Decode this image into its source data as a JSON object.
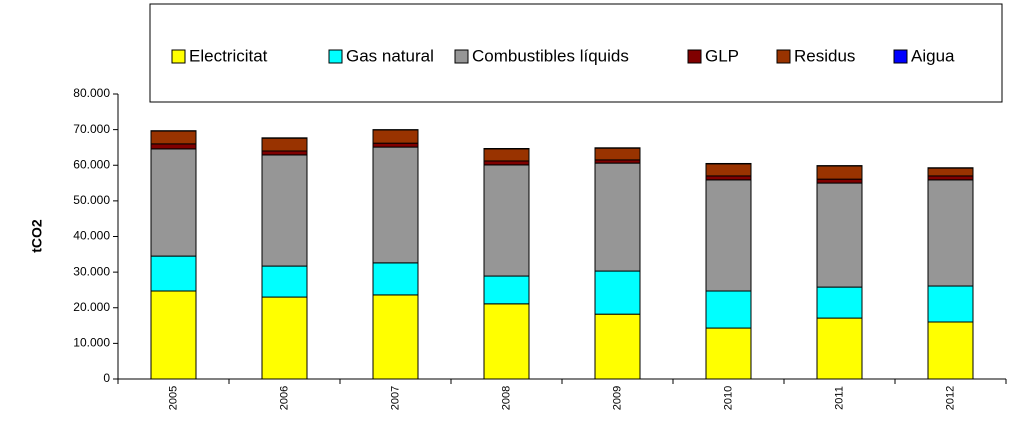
{
  "chart_data": {
    "type": "stacked_bar",
    "y_label": "tCO2",
    "categories": [
      "2005",
      "2006",
      "2007",
      "2008",
      "2009",
      "2010",
      "2011",
      "2012"
    ],
    "series": [
      {
        "name": "Electricitat",
        "color": "#ffff00",
        "values": [
          24700,
          23000,
          23600,
          21100,
          18200,
          14300,
          17100,
          16000
        ]
      },
      {
        "name": "Gas natural",
        "color": "#00ffff",
        "values": [
          9800,
          8700,
          9000,
          7800,
          12100,
          10400,
          8700,
          10100
        ]
      },
      {
        "name": "Combustibles líquids",
        "color": "#969696",
        "values": [
          30100,
          31200,
          32500,
          31200,
          30300,
          31200,
          29200,
          29800
        ]
      },
      {
        "name": "GLP",
        "color": "#800000",
        "values": [
          1400,
          1100,
          1100,
          1100,
          900,
          1100,
          1100,
          1100
        ]
      },
      {
        "name": "Residus",
        "color": "#993300",
        "values": [
          3600,
          3600,
          3700,
          3400,
          3300,
          3400,
          3700,
          2200
        ]
      },
      {
        "name": "Aigua",
        "color": "#0000ff",
        "values": [
          100,
          100,
          100,
          100,
          100,
          100,
          100,
          100
        ]
      }
    ],
    "ylim": [
      0,
      80000
    ],
    "yticks": [
      0,
      {
        "value": 10000,
        "label": "10.000"
      },
      {
        "value": 20000,
        "label": "20.000"
      },
      {
        "value": 30000,
        "label": "30.000"
      },
      {
        "value": 40000,
        "label": "40.000"
      },
      {
        "value": 50000,
        "label": "50.000"
      },
      {
        "value": 60000,
        "label": "60.000"
      },
      {
        "value": 70000,
        "label": "70.000"
      },
      {
        "value": 80000,
        "label": "80.000"
      }
    ],
    "legend": "top"
  }
}
